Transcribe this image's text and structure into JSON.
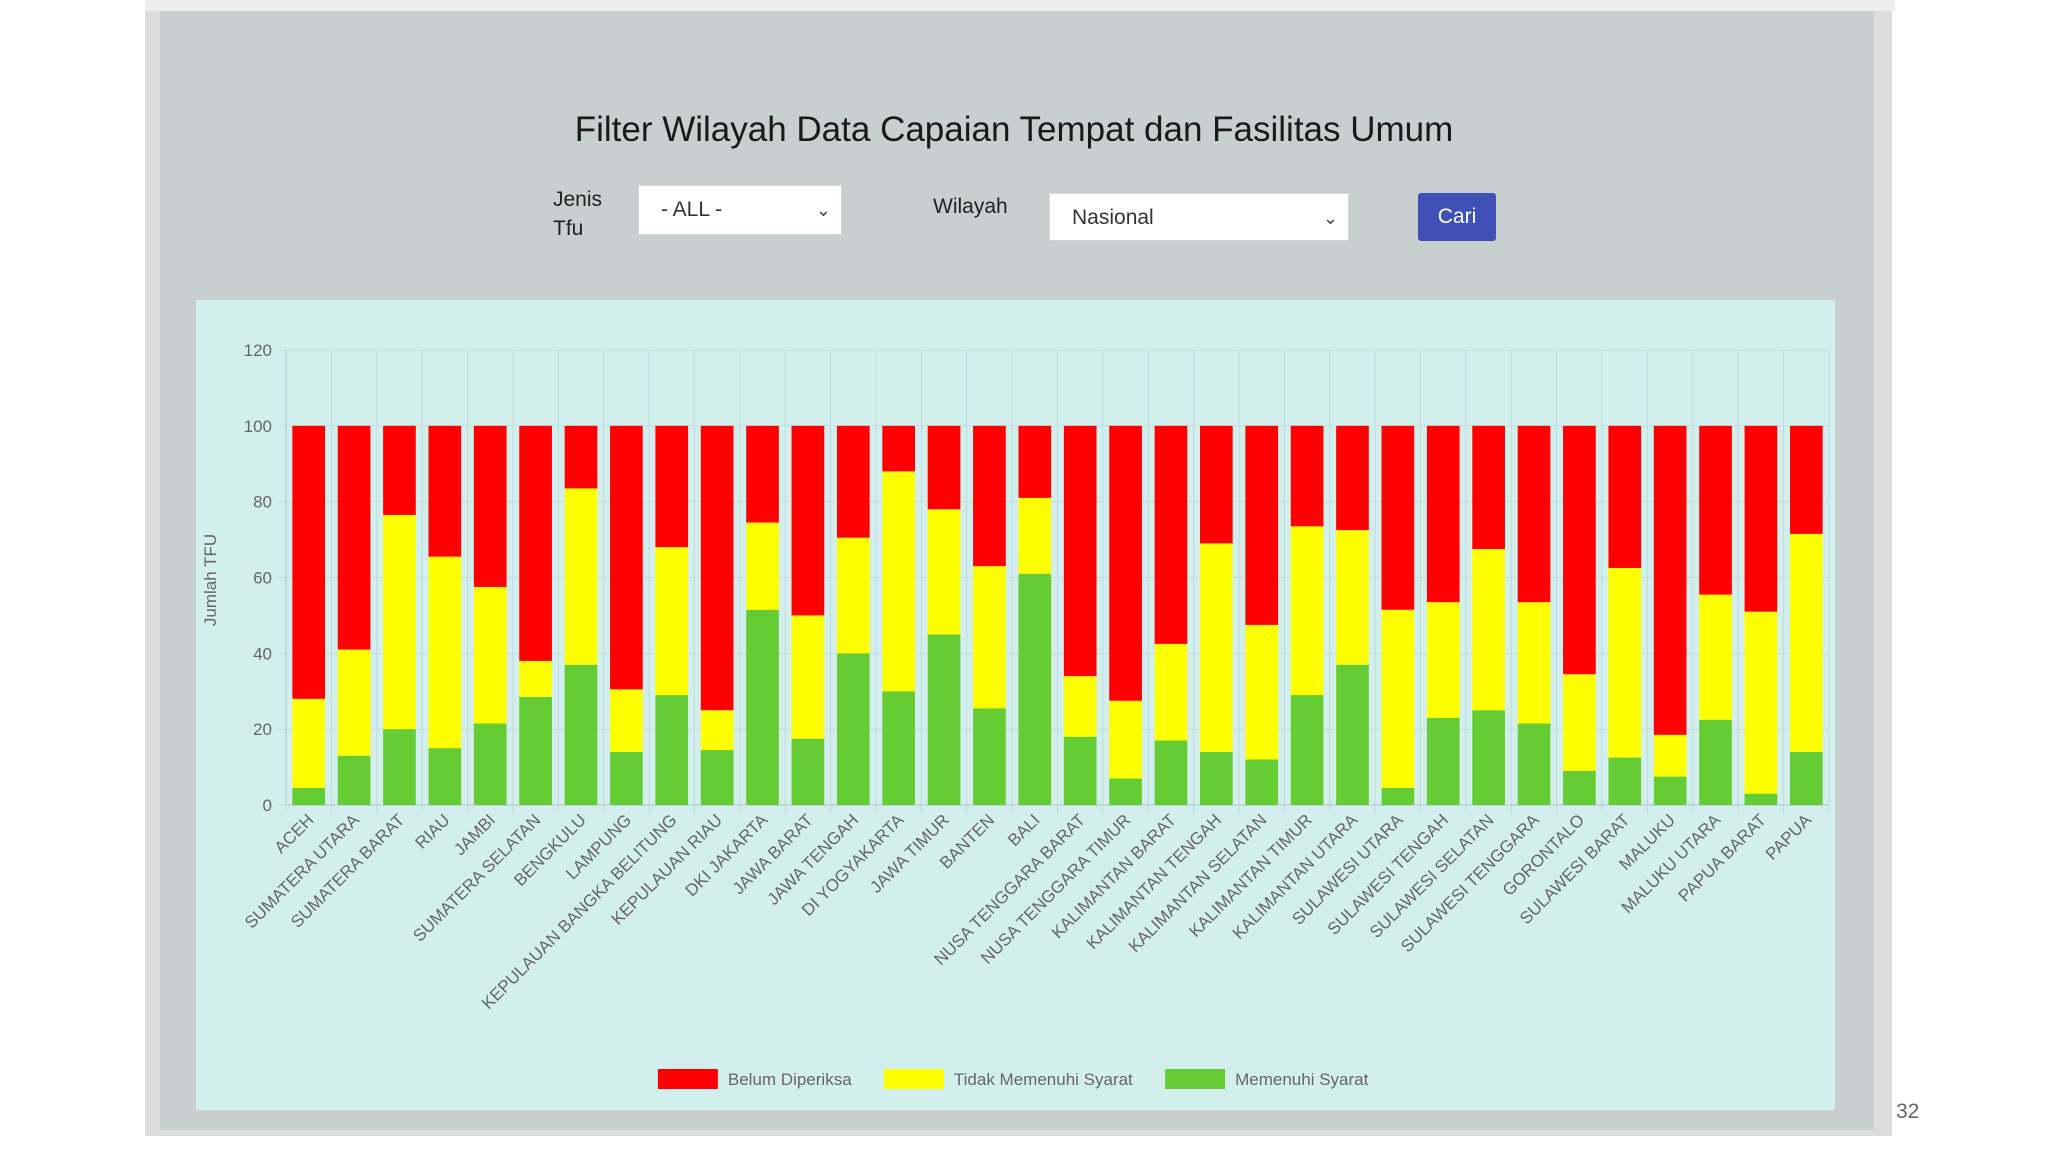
{
  "page": {
    "title": "Filter Wilayah Data Capaian Tempat dan Fasilitas Umum",
    "page_number": "32"
  },
  "filters": {
    "jenis_label": "Jenis Tfu",
    "jenis_value": "- ALL -",
    "wilayah_label": "Wilayah",
    "wilayah_value": "Nasional",
    "search_button": "Cari"
  },
  "chart_data": {
    "type": "bar",
    "stacked": true,
    "ylabel": "Jumlah TFU",
    "ylim": [
      0,
      120
    ],
    "yticks": [
      0,
      20,
      40,
      60,
      80,
      100,
      120
    ],
    "grid": true,
    "legend_position": "bottom",
    "categories": [
      "ACEH",
      "SUMATERA UTARA",
      "SUMATERA BARAT",
      "RIAU",
      "JAMBI",
      "SUMATERA SELATAN",
      "BENGKULU",
      "LAMPUNG",
      "KEPULAUAN BANGKA BELITUNG",
      "KEPULAUAN RIAU",
      "DKI JAKARTA",
      "JAWA BARAT",
      "JAWA TENGAH",
      "DI YOGYAKARTA",
      "JAWA TIMUR",
      "BANTEN",
      "BALI",
      "NUSA TENGGARA BARAT",
      "NUSA TENGGARA TIMUR",
      "KALIMANTAN BARAT",
      "KALIMANTAN TENGAH",
      "KALIMANTAN SELATAN",
      "KALIMANTAN TIMUR",
      "KALIMANTAN UTARA",
      "SULAWESI UTARA",
      "SULAWESI TENGAH",
      "SULAWESI SELATAN",
      "SULAWESI TENGGARA",
      "GORONTALO",
      "SULAWESI BARAT",
      "MALUKU",
      "MALUKU UTARA",
      "PAPUA BARAT",
      "PAPUA"
    ],
    "series": [
      {
        "name": "Memenuhi Syarat",
        "color": "#66cc33",
        "values": [
          4.5,
          13,
          20,
          15,
          21.5,
          28.5,
          37,
          14,
          29,
          14.5,
          51.5,
          17.5,
          40,
          30,
          45,
          25.5,
          61,
          18,
          7,
          17,
          14,
          12,
          29,
          37,
          4.5,
          23,
          25,
          21.5,
          9,
          12.5,
          7.5,
          22.5,
          3,
          14
        ]
      },
      {
        "name": "Tidak Memenuhi Syarat",
        "color": "#ffff00",
        "values": [
          23.5,
          28,
          56.5,
          50.5,
          36,
          9.5,
          46.5,
          16.5,
          39,
          10.5,
          23,
          32.5,
          30.5,
          58,
          33,
          37.5,
          20,
          16,
          20.5,
          25.5,
          55,
          35.5,
          44.5,
          35.5,
          47,
          30.5,
          42.5,
          32,
          25.5,
          50,
          11,
          33,
          48,
          57.5
        ]
      },
      {
        "name": "Belum Diperiksa",
        "color": "#ff0000",
        "values": [
          72,
          59,
          23.5,
          34.5,
          42.5,
          62,
          16.5,
          69.5,
          32,
          75,
          25.5,
          50,
          29.5,
          12,
          22,
          37,
          19,
          66,
          72.5,
          57.5,
          31,
          52.5,
          26.5,
          27.5,
          48.5,
          46.5,
          32.5,
          46.5,
          65.5,
          37.5,
          81.5,
          44.5,
          49,
          28.5
        ]
      }
    ],
    "legend": [
      {
        "name": "Belum Diperiksa",
        "color": "#ff0000"
      },
      {
        "name": "Tidak Memenuhi Syarat",
        "color": "#ffff00"
      },
      {
        "name": "Memenuhi Syarat",
        "color": "#66cc33"
      }
    ]
  }
}
